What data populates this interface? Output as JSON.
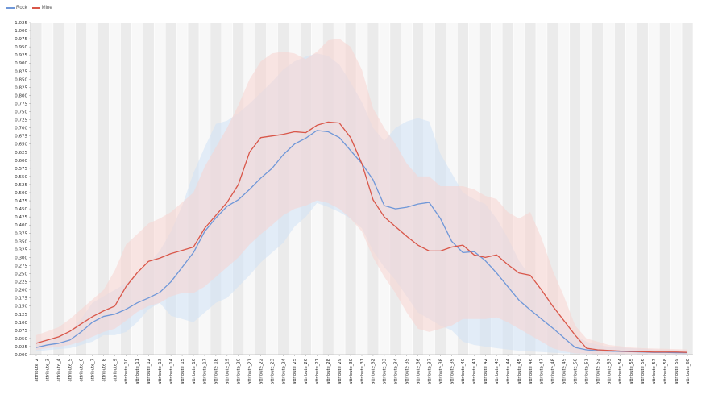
{
  "chart_data": {
    "type": "line",
    "title": "",
    "xlabel": "",
    "ylabel": "",
    "ylim": [
      0.0,
      1.025
    ],
    "y_tick_step": 0.025,
    "grid": "vertical alternating bands",
    "legend_position": "top-left",
    "categories": [
      "attribute_2",
      "attribute_3",
      "attribute_4",
      "attribute_5",
      "attribute_6",
      "attribute_7",
      "attribute_8",
      "attribute_9",
      "attribute_10",
      "attribute_11",
      "attribute_12",
      "attribute_13",
      "attribute_14",
      "attribute_15",
      "attribute_16",
      "attribute_17",
      "attribute_18",
      "attribute_19",
      "attribute_20",
      "attribute_21",
      "attribute_22",
      "attribute_23",
      "attribute_24",
      "attribute_25",
      "attribute_26",
      "attribute_27",
      "attribute_28",
      "attribute_29",
      "attribute_30",
      "attribute_31",
      "attribute_32",
      "attribute_33",
      "attribute_34",
      "attribute_35",
      "attribute_36",
      "attribute_37",
      "attribute_38",
      "attribute_39",
      "attribute_40",
      "attribute_41",
      "attribute_42",
      "attribute_43",
      "attribute_44",
      "attribute_45",
      "attribute_46",
      "attribute_47",
      "attribute_48",
      "attribute_49",
      "attribute_50",
      "attribute_51",
      "attribute_52",
      "attribute_53",
      "attribute_54",
      "attribute_55",
      "attribute_56",
      "attribute_57",
      "attribute_58",
      "attribute_59",
      "attribute_60"
    ],
    "series": [
      {
        "name": "Rock",
        "color": "#6f97d8",
        "band_color": "#cfe2f5",
        "values": [
          0.022,
          0.03,
          0.035,
          0.045,
          0.07,
          0.1,
          0.118,
          0.125,
          0.14,
          0.16,
          0.175,
          0.192,
          0.225,
          0.27,
          0.315,
          0.38,
          0.422,
          0.458,
          0.478,
          0.51,
          0.545,
          0.575,
          0.617,
          0.65,
          0.668,
          0.692,
          0.688,
          0.67,
          0.63,
          0.59,
          0.54,
          0.46,
          0.45,
          0.455,
          0.465,
          0.47,
          0.42,
          0.35,
          0.315,
          0.318,
          0.29,
          0.252,
          0.21,
          0.168,
          0.138,
          0.11,
          0.082,
          0.052,
          0.022,
          0.015,
          0.012,
          0.011,
          0.01,
          0.009,
          0.008,
          0.007,
          0.007,
          0.006,
          0.006
        ],
        "lower": [
          0.01,
          0.014,
          0.017,
          0.02,
          0.03,
          0.04,
          0.06,
          0.06,
          0.07,
          0.1,
          0.14,
          0.16,
          0.12,
          0.11,
          0.1,
          0.13,
          0.16,
          0.175,
          0.21,
          0.245,
          0.285,
          0.315,
          0.345,
          0.395,
          0.425,
          0.468,
          0.456,
          0.44,
          0.42,
          0.39,
          0.32,
          0.27,
          0.23,
          0.18,
          0.13,
          0.11,
          0.09,
          0.075,
          0.04,
          0.03,
          0.025,
          0.02,
          0.016,
          0.012,
          0.01,
          0.008,
          0.006,
          0.004,
          0.003,
          0.002,
          0.002,
          0.002,
          0.002,
          0.002,
          0.002,
          0.002,
          0.002,
          0.001,
          0.001
        ],
        "upper": [
          0.04,
          0.048,
          0.056,
          0.07,
          0.11,
          0.16,
          0.18,
          0.2,
          0.22,
          0.25,
          0.28,
          0.32,
          0.38,
          0.46,
          0.56,
          0.64,
          0.712,
          0.722,
          0.745,
          0.775,
          0.808,
          0.842,
          0.88,
          0.905,
          0.92,
          0.93,
          0.922,
          0.895,
          0.84,
          0.78,
          0.7,
          0.66,
          0.7,
          0.72,
          0.73,
          0.72,
          0.62,
          0.56,
          0.5,
          0.48,
          0.465,
          0.42,
          0.36,
          0.29,
          0.24,
          0.2,
          0.15,
          0.1,
          0.06,
          0.04,
          0.03,
          0.025,
          0.022,
          0.02,
          0.018,
          0.016,
          0.015,
          0.014,
          0.013
        ]
      },
      {
        "name": "Mine",
        "color": "#d9574a",
        "band_color": "#f8d4d0",
        "values": [
          0.035,
          0.045,
          0.055,
          0.072,
          0.095,
          0.117,
          0.135,
          0.15,
          0.21,
          0.253,
          0.288,
          0.298,
          0.312,
          0.322,
          0.332,
          0.39,
          0.43,
          0.47,
          0.525,
          0.625,
          0.67,
          0.675,
          0.68,
          0.688,
          0.685,
          0.708,
          0.718,
          0.715,
          0.67,
          0.59,
          0.478,
          0.425,
          0.395,
          0.365,
          0.338,
          0.32,
          0.32,
          0.332,
          0.338,
          0.308,
          0.3,
          0.308,
          0.278,
          0.252,
          0.245,
          0.2,
          0.15,
          0.105,
          0.06,
          0.02,
          0.015,
          0.013,
          0.011,
          0.01,
          0.009,
          0.008,
          0.008,
          0.008,
          0.007
        ],
        "lower": [
          0.015,
          0.02,
          0.025,
          0.03,
          0.04,
          0.055,
          0.07,
          0.08,
          0.105,
          0.132,
          0.15,
          0.16,
          0.18,
          0.19,
          0.19,
          0.21,
          0.24,
          0.27,
          0.3,
          0.34,
          0.372,
          0.4,
          0.43,
          0.45,
          0.46,
          0.476,
          0.468,
          0.45,
          0.42,
          0.38,
          0.3,
          0.24,
          0.19,
          0.13,
          0.08,
          0.07,
          0.08,
          0.09,
          0.11,
          0.11,
          0.11,
          0.115,
          0.1,
          0.08,
          0.06,
          0.04,
          0.02,
          0.01,
          0.004,
          0.003,
          0.002,
          0.002,
          0.002,
          0.002,
          0.002,
          0.002,
          0.002,
          0.002,
          0.002
        ],
        "upper": [
          0.06,
          0.072,
          0.085,
          0.11,
          0.14,
          0.17,
          0.2,
          0.26,
          0.34,
          0.372,
          0.405,
          0.42,
          0.44,
          0.47,
          0.5,
          0.58,
          0.64,
          0.7,
          0.77,
          0.85,
          0.905,
          0.93,
          0.935,
          0.93,
          0.912,
          0.935,
          0.97,
          0.975,
          0.95,
          0.88,
          0.76,
          0.7,
          0.65,
          0.59,
          0.55,
          0.55,
          0.52,
          0.52,
          0.52,
          0.51,
          0.49,
          0.48,
          0.44,
          0.42,
          0.44,
          0.36,
          0.26,
          0.18,
          0.09,
          0.05,
          0.04,
          0.03,
          0.026,
          0.022,
          0.02,
          0.019,
          0.018,
          0.017,
          0.016
        ]
      }
    ]
  }
}
